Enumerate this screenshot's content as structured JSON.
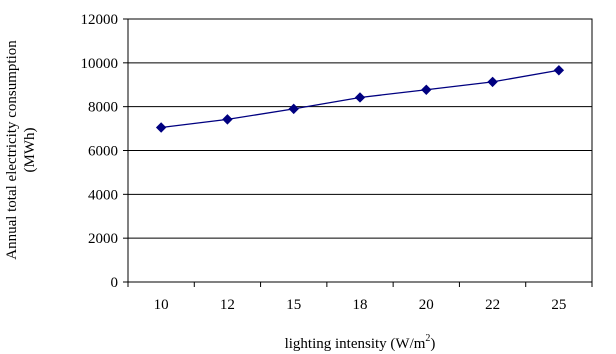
{
  "chart_data": {
    "type": "line",
    "x": [
      "10",
      "12",
      "15",
      "18",
      "20",
      "22",
      "25"
    ],
    "y": [
      7050,
      7420,
      7900,
      8420,
      8770,
      9130,
      9660
    ],
    "xlabel": "lighting intensity (W/m",
    "xlabel_superscript": "2",
    "xlabel_suffix": ")",
    "ylabel_line1": "Annual total electricity consumption",
    "ylabel_line2": "(MWh)",
    "ylim": [
      0,
      12000
    ],
    "yticks": [
      "0",
      "2000",
      "4000",
      "6000",
      "8000",
      "10000",
      "12000"
    ],
    "grid": "horizontal",
    "legend": "none",
    "line_color": "#000080",
    "marker": "diamond"
  }
}
